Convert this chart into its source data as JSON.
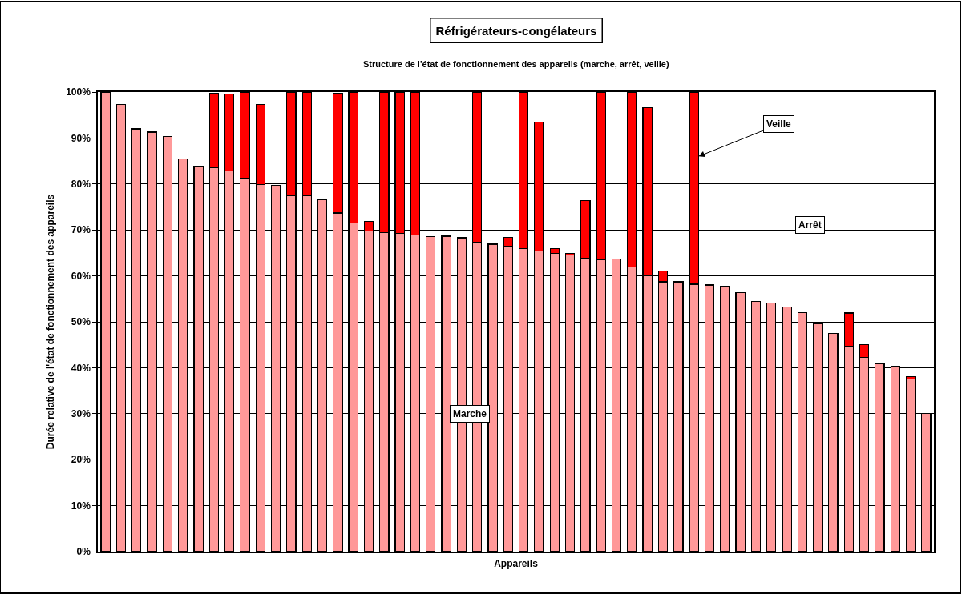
{
  "chart_data": {
    "type": "bar",
    "title": "Réfrigérateurs-congélateurs",
    "subtitle": "Structure de l'état de fonctionnement des appareils (marche, arrêt, veille)",
    "xlabel": "Appareils",
    "ylabel": "Durée relative de l'état de fonctionnement des appareils",
    "categories": [
      null,
      null,
      null,
      null,
      null,
      null,
      null,
      null,
      null,
      null,
      null,
      null,
      null,
      null,
      null,
      null,
      null,
      null,
      null,
      null,
      null,
      null,
      null,
      null,
      null,
      null,
      null,
      null,
      null,
      null,
      null,
      null,
      null,
      null,
      null,
      null,
      null,
      null,
      null,
      null,
      null,
      null,
      null,
      null,
      null,
      null,
      null,
      null,
      null,
      null,
      null,
      null,
      null,
      null
    ],
    "stacked": true,
    "series": [
      {
        "name": "Marche",
        "color": "#ff9999",
        "values": [
          100,
          97.3,
          92,
          91.3,
          90.3,
          85.5,
          83.9,
          83.6,
          82.8,
          81.2,
          79.9,
          79.7,
          77.5,
          77.4,
          76.6,
          73.7,
          71.5,
          69.8,
          69.4,
          69.3,
          68.9,
          68.5,
          68.5,
          68.3,
          67.3,
          66.9,
          66.5,
          66,
          65.4,
          64.9,
          64.6,
          63.9,
          63.6,
          63.7,
          61.9,
          60.1,
          58.7,
          58.7,
          58.2,
          58,
          57.7,
          56.3,
          54.5,
          54.1,
          53.2,
          52,
          49.5,
          47.5,
          44.6,
          42.3,
          40.8,
          40.3,
          37.6,
          30
        ]
      },
      {
        "name": "Veille",
        "color": "#ff0000",
        "values": [
          0,
          0,
          0,
          0,
          0,
          0,
          0,
          16.2,
          16.8,
          18.8,
          17.4,
          0,
          22.5,
          22.6,
          0,
          26.1,
          28.5,
          2,
          30.6,
          30.7,
          31.1,
          0,
          0.3,
          0,
          32.7,
          0,
          1.9,
          34,
          28,
          1,
          0.3,
          12.5,
          36.4,
          0,
          38.1,
          36.5,
          2.4,
          0,
          41.8,
          0,
          0,
          0,
          0,
          0,
          0,
          0,
          0.3,
          0,
          7.3,
          2.7,
          0,
          0,
          0.4,
          0
        ]
      }
    ],
    "annotations": [
      "Arrêt"
    ],
    "ylim": [
      0,
      100
    ],
    "yticks": [
      {
        "value": 0,
        "label": "0%"
      },
      {
        "value": 10,
        "label": "10%"
      },
      {
        "value": 20,
        "label": "20%"
      },
      {
        "value": 30,
        "label": "30%"
      },
      {
        "value": 40,
        "label": "40%"
      },
      {
        "value": 50,
        "label": "50%"
      },
      {
        "value": 60,
        "label": "60%"
      },
      {
        "value": 70,
        "label": "70%"
      },
      {
        "value": 80,
        "label": "80%"
      },
      {
        "value": 90,
        "label": "90%"
      },
      {
        "value": 100,
        "label": "100%"
      }
    ],
    "grid": "y",
    "legend": false,
    "tick_labels": "y"
  }
}
